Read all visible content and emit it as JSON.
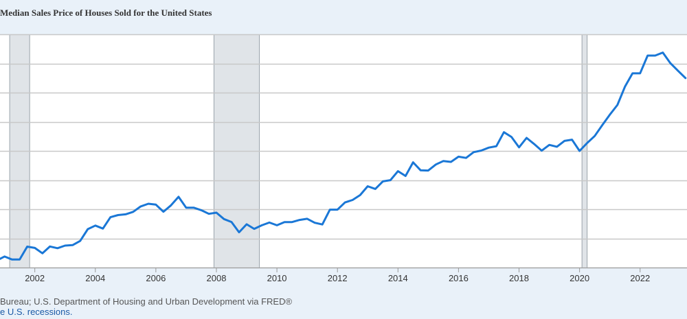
{
  "chart_data": {
    "type": "line",
    "title": "Median Sales Price of Houses Sold for the United States",
    "xlabel": "",
    "ylabel": "",
    "xlim": [
      2000.85,
      2023.55
    ],
    "ylim": [
      160000,
      480000
    ],
    "y_grid": [
      160000,
      200000,
      240000,
      280000,
      320000,
      360000,
      400000,
      440000
    ],
    "x_ticks": [
      2002,
      2004,
      2006,
      2008,
      2010,
      2012,
      2014,
      2016,
      2018,
      2020,
      2022
    ],
    "x_tick_labels": [
      "2002",
      "2004",
      "2006",
      "2008",
      "2010",
      "2012",
      "2014",
      "2016",
      "2018",
      "2020",
      "2022"
    ],
    "grid": true,
    "recessions": [
      [
        2001.17,
        2001.83
      ],
      [
        2007.92,
        2009.42
      ],
      [
        2020.08,
        2020.25
      ]
    ],
    "series": [
      {
        "x": [
          2000.75,
          2001.0,
          2001.25,
          2001.5,
          2001.75,
          2002.0,
          2002.25,
          2002.5,
          2002.75,
          2003.0,
          2003.25,
          2003.5,
          2003.75,
          2004.0,
          2004.25,
          2004.5,
          2004.75,
          2005.0,
          2005.25,
          2005.5,
          2005.75,
          2006.0,
          2006.25,
          2006.5,
          2006.75,
          2007.0,
          2007.25,
          2007.5,
          2007.75,
          2008.0,
          2008.25,
          2008.5,
          2008.75,
          2009.0,
          2009.25,
          2009.5,
          2009.75,
          2010.0,
          2010.25,
          2010.5,
          2010.75,
          2011.0,
          2011.25,
          2011.5,
          2011.75,
          2012.0,
          2012.25,
          2012.5,
          2012.75,
          2013.0,
          2013.25,
          2013.5,
          2013.75,
          2014.0,
          2014.25,
          2014.5,
          2014.75,
          2015.0,
          2015.25,
          2015.5,
          2015.75,
          2016.0,
          2016.25,
          2016.5,
          2016.75,
          2017.0,
          2017.25,
          2017.5,
          2017.75,
          2018.0,
          2018.25,
          2018.5,
          2018.75,
          2019.0,
          2019.25,
          2019.5,
          2019.75,
          2020.0,
          2020.25,
          2020.5,
          2020.75,
          2021.0,
          2021.25,
          2021.5,
          2021.75,
          2022.0,
          2022.25,
          2022.5,
          2022.75,
          2023.0,
          2023.25,
          2023.5
        ],
        "y": [
          169800,
          175200,
          171000,
          171100,
          188700,
          186900,
          179600,
          188900,
          186500,
          190100,
          190800,
          196500,
          212700,
          217600,
          213500,
          229100,
          232000,
          233000,
          236400,
          243900,
          247500,
          246300,
          236600,
          245400,
          257000,
          242200,
          242200,
          238700,
          233700,
          235300,
          226500,
          222500,
          208400,
          219400,
          213100,
          218000,
          221700,
          218000,
          222300,
          222400,
          225300,
          226900,
          221500,
          219100,
          239400,
          239400,
          249300,
          252700,
          259400,
          271500,
          267900,
          278200,
          279900,
          292200,
          285600,
          304400,
          293400,
          293100,
          301400,
          306200,
          304900,
          312100,
          310400,
          318300,
          320500,
          324500,
          326500,
          345700,
          339200,
          324900,
          337900,
          329500,
          320400,
          328300,
          325700,
          333700,
          335400,
          320000,
          330800,
          340400,
          355400,
          369800,
          383100,
          408200,
          426400,
          426400,
          450800,
          450800,
          455000,
          440400,
          430000,
          420000
        ]
      }
    ]
  },
  "footer": {
    "source": "Bureau; U.S. Department of Housing and Urban Development via FRED®",
    "recession_prefix": "",
    "recession_link": "e U.S. recessions."
  },
  "colors": {
    "line": "#1a77d6",
    "recession_shade": "#e0e4e8",
    "grid": "#c8c8c8",
    "background_outer": "#e9f1f9",
    "plot_background": "#ffffff",
    "link": "#1b5aa6"
  }
}
